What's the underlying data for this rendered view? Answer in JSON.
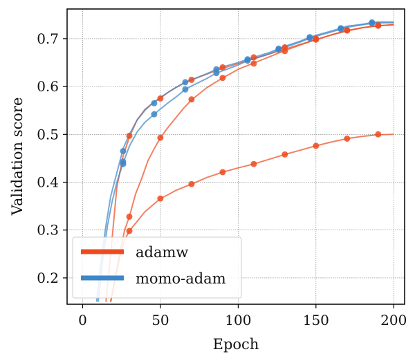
{
  "chart_data": {
    "type": "line",
    "title": "",
    "xlabel": "Epoch",
    "ylabel": "Validation score",
    "xlim": [
      -10,
      207
    ],
    "ylim": [
      0.145,
      0.762
    ],
    "xticks": [
      0,
      50,
      100,
      150,
      200
    ],
    "yticks": [
      0.2,
      0.3,
      0.4,
      0.5,
      0.6,
      0.7
    ],
    "ytick_labels": [
      "0.2",
      "0.3",
      "0.4",
      "0.5",
      "0.6",
      "0.7"
    ],
    "grid": true,
    "legend_position": "lower-left",
    "legend": [
      {
        "name": "adamw",
        "color": "#ee4a1f"
      },
      {
        "name": "momo-adam",
        "color": "#3d86c7"
      }
    ],
    "series": [
      {
        "name": "adamw",
        "color": "#ee4a1f",
        "runs": [
          {
            "x": [
              15,
              18,
              22,
              26,
              30,
              35,
              40,
              45,
              50,
              55,
              60,
              65,
              70,
              80,
              90,
              100,
              110,
              120,
              130,
              140,
              150,
              160,
              170,
              180,
              190,
              200
            ],
            "y": [
              0.15,
              0.25,
              0.39,
              0.455,
              0.494,
              0.53,
              0.552,
              0.565,
              0.576,
              0.588,
              0.598,
              0.607,
              0.614,
              0.626,
              0.638,
              0.648,
              0.658,
              0.668,
              0.678,
              0.688,
              0.698,
              0.708,
              0.716,
              0.723,
              0.727,
              0.729
            ]
          },
          {
            "x": [
              18,
              21,
              24,
              27,
              30,
              34,
              38,
              42,
              46,
              50,
              55,
              60,
              65,
              70,
              80,
              90,
              100,
              110,
              120,
              130,
              140,
              150,
              160,
              170,
              180,
              190,
              200
            ],
            "y": [
              0.15,
              0.2,
              0.255,
              0.3,
              0.328,
              0.375,
              0.408,
              0.445,
              0.47,
              0.493,
              0.515,
              0.535,
              0.555,
              0.572,
              0.598,
              0.618,
              0.636,
              0.649,
              0.662,
              0.675,
              0.687,
              0.698,
              0.708,
              0.717,
              0.723,
              0.727,
              0.729
            ]
          },
          {
            "x": [
              18,
              21,
              24,
              27,
              30,
              35,
              40,
              45,
              50,
              55,
              60,
              70,
              80,
              90,
              100,
              110,
              120,
              130,
              140,
              150,
              160,
              170,
              180,
              190,
              200
            ],
            "y": [
              0.15,
              0.2,
              0.245,
              0.28,
              0.298,
              0.318,
              0.338,
              0.352,
              0.366,
              0.374,
              0.383,
              0.396,
              0.41,
              0.421,
              0.43,
              0.438,
              0.448,
              0.458,
              0.467,
              0.476,
              0.484,
              0.491,
              0.496,
              0.499,
              0.5
            ]
          }
        ],
        "markers": [
          {
            "x": 30,
            "y": 0.497
          },
          {
            "x": 50,
            "y": 0.575
          },
          {
            "x": 70,
            "y": 0.614
          },
          {
            "x": 90,
            "y": 0.64
          },
          {
            "x": 110,
            "y": 0.661
          },
          {
            "x": 130,
            "y": 0.682
          },
          {
            "x": 150,
            "y": 0.7
          },
          {
            "x": 170,
            "y": 0.718
          },
          {
            "x": 190,
            "y": 0.727
          },
          {
            "x": 30,
            "y": 0.328
          },
          {
            "x": 50,
            "y": 0.493
          },
          {
            "x": 70,
            "y": 0.573
          },
          {
            "x": 90,
            "y": 0.618
          },
          {
            "x": 110,
            "y": 0.648
          },
          {
            "x": 130,
            "y": 0.674
          },
          {
            "x": 150,
            "y": 0.698
          },
          {
            "x": 170,
            "y": 0.717
          },
          {
            "x": 190,
            "y": 0.728
          },
          {
            "x": 30,
            "y": 0.298
          },
          {
            "x": 50,
            "y": 0.366
          },
          {
            "x": 70,
            "y": 0.396
          },
          {
            "x": 90,
            "y": 0.421
          },
          {
            "x": 110,
            "y": 0.438
          },
          {
            "x": 130,
            "y": 0.458
          },
          {
            "x": 150,
            "y": 0.476
          },
          {
            "x": 170,
            "y": 0.491
          },
          {
            "x": 190,
            "y": 0.5
          }
        ]
      },
      {
        "name": "momo-adam",
        "color": "#3d86c7",
        "runs": [
          {
            "x": [
              9,
              12,
              15,
              18,
              22,
              26,
              30,
              35,
              40,
              45,
              50,
              55,
              60,
              66,
              70,
              80,
              86,
              90,
              100,
              106,
              110,
              120,
              126,
              130,
              140,
              146,
              150,
              160,
              166,
              170,
              180,
              186,
              190,
              200
            ],
            "y": [
              0.15,
              0.24,
              0.31,
              0.37,
              0.42,
              0.47,
              0.5,
              0.53,
              0.55,
              0.565,
              0.577,
              0.588,
              0.598,
              0.609,
              0.614,
              0.627,
              0.636,
              0.641,
              0.65,
              0.657,
              0.661,
              0.671,
              0.679,
              0.684,
              0.695,
              0.703,
              0.707,
              0.716,
              0.722,
              0.726,
              0.73,
              0.734,
              0.735,
              0.735
            ]
          },
          {
            "x": [
              10,
              13,
              16,
              19,
              22,
              26,
              30,
              35,
              40,
              46,
              50,
              55,
              60,
              66,
              70,
              80,
              86,
              90,
              100,
              106,
              110,
              120,
              126,
              130,
              140,
              146,
              150,
              160,
              166,
              170,
              180,
              186,
              190,
              200
            ],
            "y": [
              0.15,
              0.24,
              0.31,
              0.36,
              0.4,
              0.44,
              0.475,
              0.505,
              0.525,
              0.542,
              0.553,
              0.566,
              0.578,
              0.594,
              0.601,
              0.617,
              0.628,
              0.633,
              0.645,
              0.654,
              0.658,
              0.668,
              0.677,
              0.682,
              0.693,
              0.701,
              0.705,
              0.714,
              0.72,
              0.724,
              0.729,
              0.732,
              0.733,
              0.733
            ]
          }
        ],
        "markers": [
          {
            "x": 26,
            "y": 0.465
          },
          {
            "x": 46,
            "y": 0.565
          },
          {
            "x": 66,
            "y": 0.609
          },
          {
            "x": 86,
            "y": 0.636
          },
          {
            "x": 106,
            "y": 0.657
          },
          {
            "x": 126,
            "y": 0.679
          },
          {
            "x": 146,
            "y": 0.703
          },
          {
            "x": 166,
            "y": 0.722
          },
          {
            "x": 186,
            "y": 0.734
          },
          {
            "x": 26,
            "y": 0.443
          },
          {
            "x": 26,
            "y": 0.438
          },
          {
            "x": 46,
            "y": 0.542
          },
          {
            "x": 66,
            "y": 0.594
          },
          {
            "x": 86,
            "y": 0.628
          },
          {
            "x": 106,
            "y": 0.654
          },
          {
            "x": 126,
            "y": 0.677
          },
          {
            "x": 146,
            "y": 0.701
          },
          {
            "x": 166,
            "y": 0.72
          },
          {
            "x": 186,
            "y": 0.732
          }
        ]
      }
    ]
  }
}
